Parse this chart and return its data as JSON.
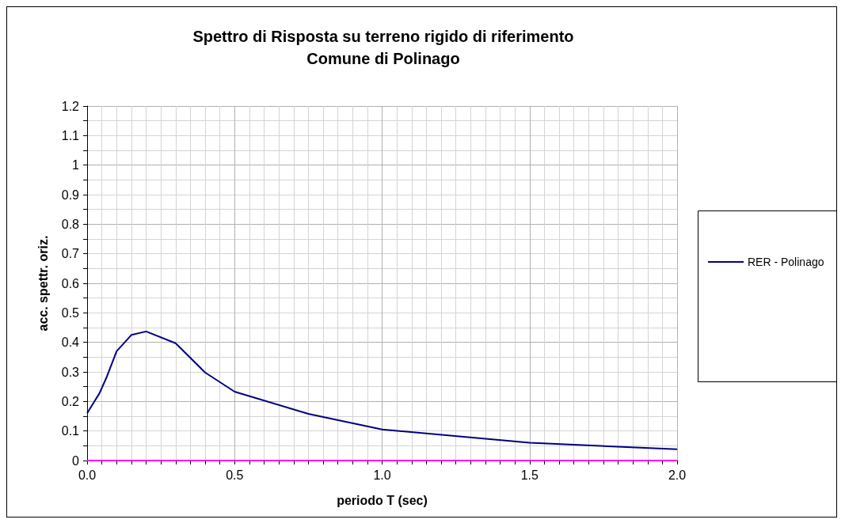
{
  "chart_data": {
    "type": "line",
    "title": "Spettro di Risposta su terreno rigido di riferimento\nComune di Polinago",
    "xlabel": "periodo T (sec)",
    "ylabel": "acc. spettr. oriz.",
    "x": [
      0,
      0.042,
      0.067,
      0.1,
      0.15,
      0.2,
      0.3,
      0.4,
      0.5,
      0.75,
      1.0,
      1.5,
      2.0
    ],
    "series": [
      {
        "name": "RER - Polinago",
        "color": "#000080",
        "values": [
          0.16,
          0.228,
          0.284,
          0.37,
          0.425,
          0.437,
          0.397,
          0.298,
          0.233,
          0.158,
          0.105,
          0.06,
          0.038
        ]
      },
      {
        "color": "#ff00ff",
        "x": [
          0,
          2
        ],
        "values": [
          0,
          0
        ]
      }
    ],
    "xlim": [
      0,
      2
    ],
    "xticks": [
      {
        "value": 0,
        "label": "0.0"
      },
      0.5,
      {
        "value": 1,
        "label": "1.0"
      },
      1.5,
      {
        "value": 2,
        "label": "2.0"
      }
    ],
    "ylim": [
      0,
      1.2
    ],
    "yticks": [
      0,
      0.1,
      0.2,
      0.3,
      0.4,
      0.5,
      0.6,
      0.7,
      0.8,
      0.9,
      1,
      1.1,
      1.2
    ],
    "grid": true,
    "legend": "right",
    "marker": "none",
    "line_style": "solid"
  }
}
